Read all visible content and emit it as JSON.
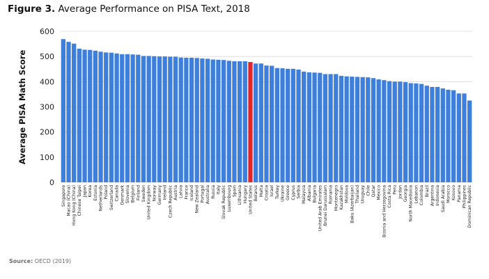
{
  "figure": {
    "label": "Figure 3.",
    "title": "Average Performance on PISA Text, 2018"
  },
  "source": {
    "label": "Source:",
    "text": "OECD (2019)"
  },
  "colors": {
    "bar": "#3f7fdc",
    "highlight": "#e0262b",
    "grid": "#d9d9d9"
  },
  "chart_data": {
    "type": "bar",
    "title": "Average Performance on PISA Text, 2018",
    "xlabel": "",
    "ylabel": "Average PISA Math Score",
    "ylim": [
      0,
      600
    ],
    "yticks": [
      0,
      100,
      200,
      300,
      400,
      500,
      600
    ],
    "grid": true,
    "highlight": "United States",
    "categories": [
      "Singapore",
      "Macao (China)",
      "Hong Kong (China)",
      "Chinese Taipei",
      "Japan",
      "Korea",
      "Estonia",
      "Netherlands",
      "Poland",
      "Switzerland",
      "Canada",
      "Denmark",
      "Slovenia",
      "Belgium",
      "Finland",
      "Sweden",
      "United Kingdom",
      "Norway",
      "Germany",
      "Ireland",
      "Czech Republic",
      "Austria",
      "Latvia",
      "France",
      "Iceland",
      "New Zealand",
      "Portugal",
      "Australia",
      "Russia",
      "Italy",
      "Slovak Republic",
      "Luxembourg",
      "Spain",
      "Lithuania",
      "Hungary",
      "United States",
      "Belarus",
      "Malta",
      "Croatia",
      "Israel",
      "Turkey",
      "Ukraine",
      "Greece",
      "Cyprus",
      "Serbia",
      "Malaysia",
      "Albania",
      "Bulgaria",
      "United Arab Emirates",
      "Brunei Darussalam",
      "Romania",
      "Montenegro",
      "Kazakhstan",
      "Moldova",
      "Baku (Azerbaijan)",
      "Thailand",
      "Uruguay",
      "Chile",
      "Qatar",
      "Mexico",
      "Bosnia and Herzegovina",
      "Costa Rica",
      "Peru",
      "Jordan",
      "Georgia",
      "North Macedonia",
      "Lebanon",
      "Colombia",
      "Brazil",
      "Argentina",
      "Indonesia",
      "Saudi Arabia",
      "Morocco",
      "Kosovo",
      "Panama",
      "Philippines",
      "Dominican Republic"
    ],
    "values": [
      569,
      558,
      551,
      531,
      527,
      526,
      523,
      519,
      516,
      515,
      512,
      509,
      509,
      508,
      507,
      502,
      502,
      501,
      500,
      500,
      499,
      499,
      496,
      495,
      495,
      494,
      492,
      491,
      488,
      487,
      486,
      483,
      481,
      481,
      481,
      478,
      472,
      472,
      464,
      463,
      454,
      453,
      451,
      451,
      448,
      440,
      437,
      436,
      435,
      430,
      430,
      430,
      423,
      421,
      420,
      419,
      418,
      417,
      414,
      409,
      406,
      402,
      400,
      400,
      398,
      394,
      393,
      391,
      384,
      379,
      379,
      373,
      368,
      366,
      353,
      353,
      325
    ]
  }
}
